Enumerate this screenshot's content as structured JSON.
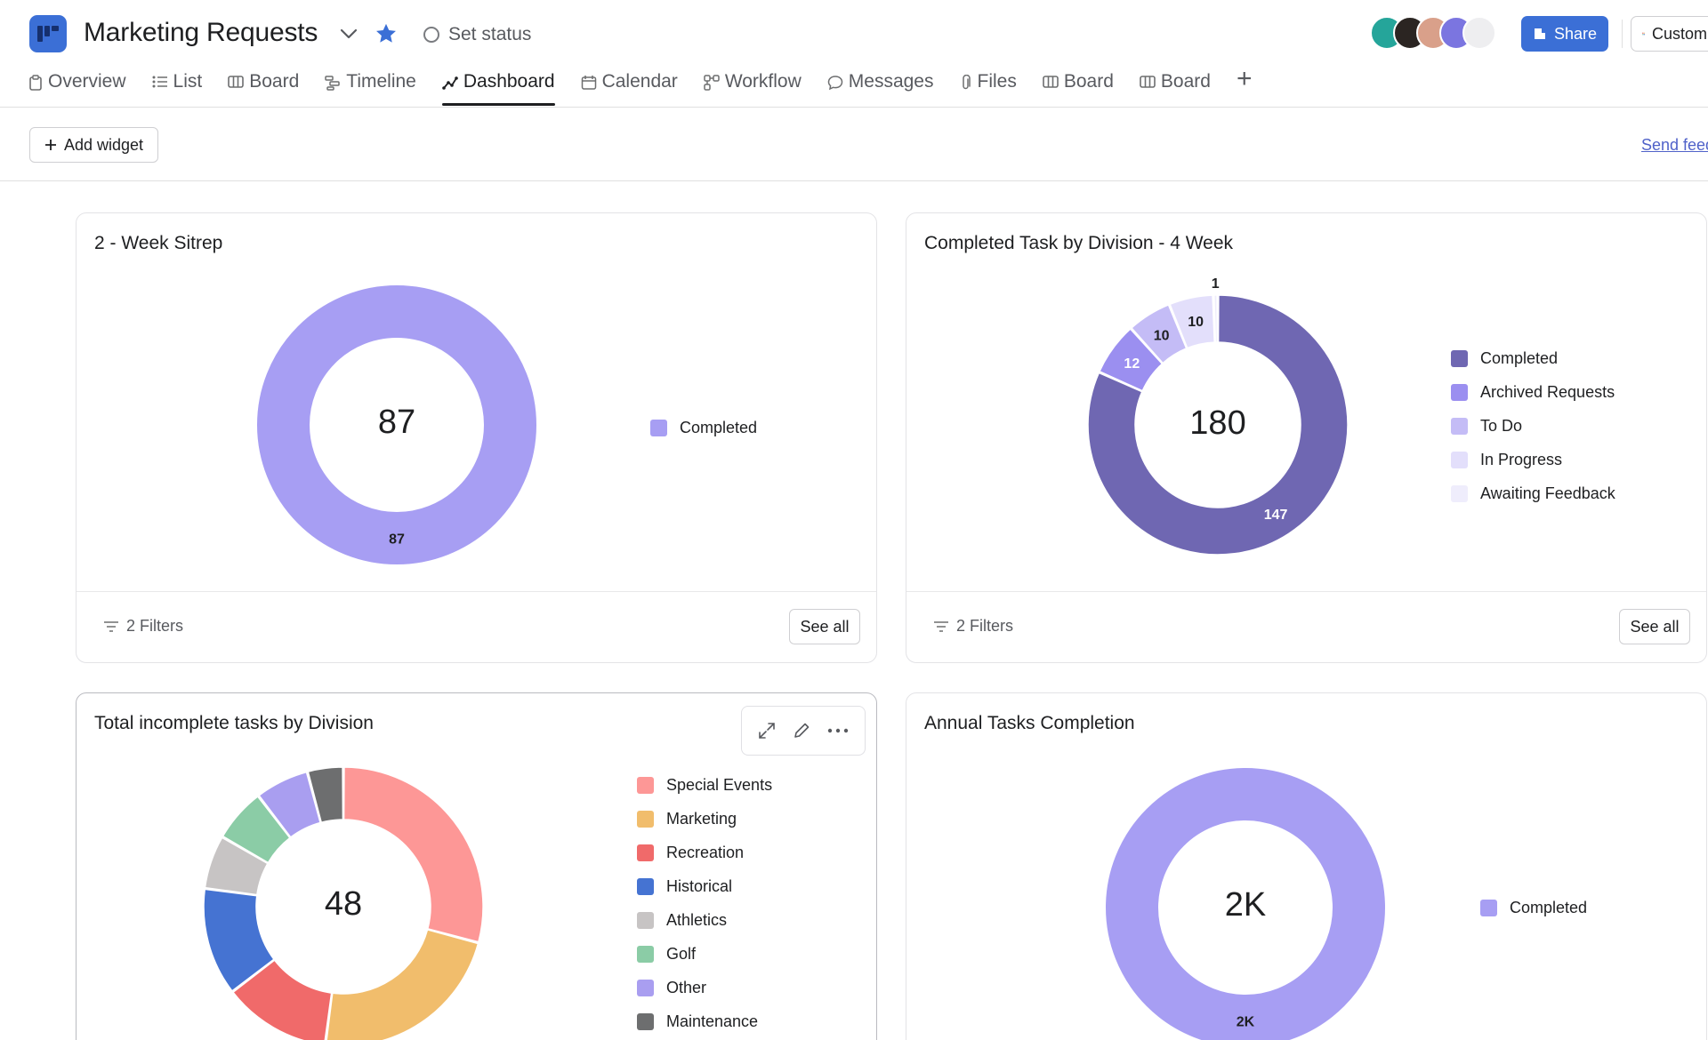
{
  "header": {
    "title": "Marketing Requests",
    "set_status": "Set status",
    "share": "Share",
    "customize": "Customize"
  },
  "tabs": [
    {
      "label": "Overview",
      "icon": "clipboard-icon"
    },
    {
      "label": "List",
      "icon": "list-icon"
    },
    {
      "label": "Board",
      "icon": "board-icon"
    },
    {
      "label": "Timeline",
      "icon": "timeline-icon"
    },
    {
      "label": "Dashboard",
      "icon": "dashboard-icon",
      "active": true
    },
    {
      "label": "Calendar",
      "icon": "calendar-icon"
    },
    {
      "label": "Workflow",
      "icon": "workflow-icon"
    },
    {
      "label": "Messages",
      "icon": "message-icon"
    },
    {
      "label": "Files",
      "icon": "paperclip-icon"
    },
    {
      "label": "Board",
      "icon": "board-icon"
    },
    {
      "label": "Board",
      "icon": "board-icon"
    }
  ],
  "toolbar": {
    "add_widget": "Add widget",
    "send_feedback": "Send feedback"
  },
  "colors": {
    "accent": "#3b6fd6",
    "completed_light": "#a79ef3",
    "completed_dark": "#6f67b2"
  },
  "widgets": [
    {
      "title": "2 - Week Sitrep",
      "center": "87",
      "filters": "2 Filters",
      "see_all": "See all",
      "legend": [
        {
          "label": "Completed",
          "color": "#a79ef3"
        }
      ]
    },
    {
      "title": "Completed Task by Division - 4 Week",
      "center": "180",
      "filters": "2 Filters",
      "see_all": "See all",
      "legend": [
        {
          "label": "Completed",
          "color": "#6f67b2"
        },
        {
          "label": "Archived Requests",
          "color": "#9b8ff0"
        },
        {
          "label": "To Do",
          "color": "#c4bcf6"
        },
        {
          "label": "In Progress",
          "color": "#e3dffb"
        },
        {
          "label": "Awaiting Feedback",
          "color": "#efedfc"
        }
      ]
    },
    {
      "title": "Total incomplete tasks by Division",
      "center": "48",
      "legend": [
        {
          "label": "Special Events",
          "color": "#fd9796"
        },
        {
          "label": "Marketing",
          "color": "#f1bd6c"
        },
        {
          "label": "Recreation",
          "color": "#f06a6a"
        },
        {
          "label": "Historical",
          "color": "#4573d2"
        },
        {
          "label": "Athletics",
          "color": "#c7c4c4"
        },
        {
          "label": "Golf",
          "color": "#8bcca6"
        },
        {
          "label": "Other",
          "color": "#a99ef0"
        },
        {
          "label": "Maintenance",
          "color": "#6d6e6f"
        }
      ]
    },
    {
      "title": "Annual Tasks Completion",
      "center": "2K",
      "legend": [
        {
          "label": "Completed",
          "color": "#a79ef3"
        }
      ]
    }
  ],
  "chart_data": [
    {
      "type": "pie",
      "title": "2 - Week Sitrep",
      "categories": [
        "Completed"
      ],
      "values": [
        87
      ],
      "data_labels": [
        "87"
      ],
      "total": 87
    },
    {
      "type": "pie",
      "title": "Completed Task by Division - 4 Week",
      "categories": [
        "Completed",
        "Archived Requests",
        "To Do",
        "In Progress",
        "Awaiting Feedback"
      ],
      "values": [
        147,
        12,
        10,
        10,
        1
      ],
      "data_labels": [
        "147",
        "12",
        "10",
        "10",
        "1"
      ],
      "total": 180
    },
    {
      "type": "pie",
      "title": "Total incomplete tasks by Division",
      "categories": [
        "Special Events",
        "Marketing",
        "Recreation",
        "Historical",
        "Athletics",
        "Golf",
        "Other",
        "Maintenance"
      ],
      "values": [
        14,
        11,
        6,
        6,
        3,
        3,
        3,
        2
      ],
      "total": 48
    },
    {
      "type": "pie",
      "title": "Annual Tasks Completion",
      "categories": [
        "Completed"
      ],
      "values": [
        2000
      ],
      "data_labels": [
        "2K"
      ],
      "total": "2K"
    }
  ]
}
